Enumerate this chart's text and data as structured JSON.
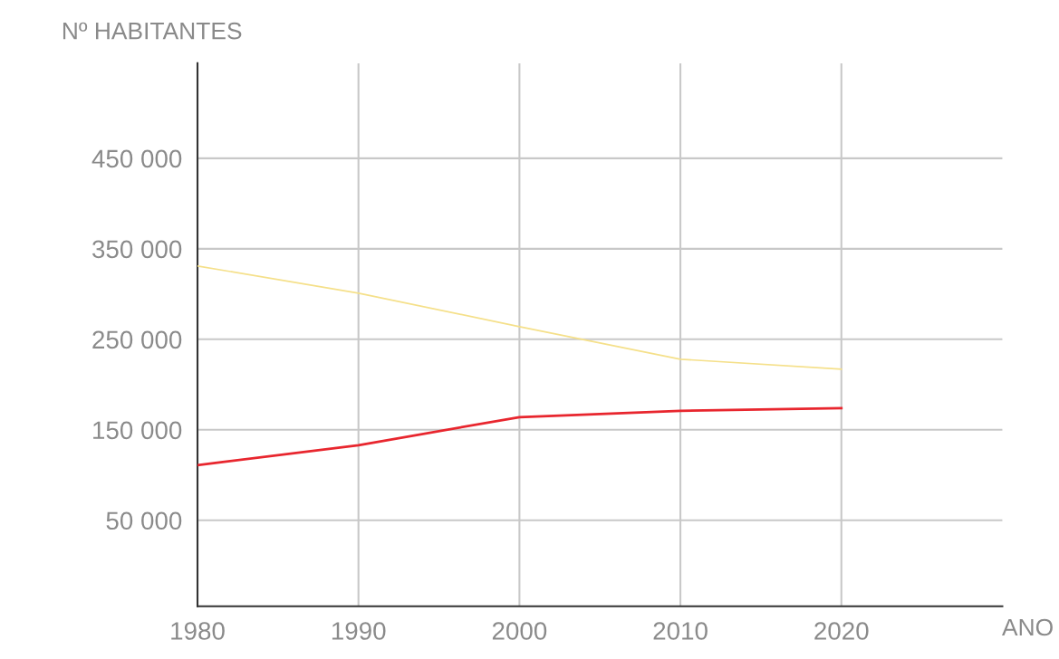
{
  "chart_data": {
    "type": "line",
    "ylabel": "Nº HABITANTES",
    "xlabel": "ANO",
    "x": [
      1980,
      1990,
      2000,
      2010,
      2020
    ],
    "series": [
      {
        "color": "#f5e08a",
        "values": [
          331000,
          301000,
          264000,
          228000,
          217000
        ]
      },
      {
        "color": "#e8262e",
        "values": [
          111000,
          133000,
          164000,
          171000,
          174000
        ]
      }
    ],
    "xlim": [
      1980,
      2030
    ],
    "xticks": [
      1980,
      1990,
      2000,
      2010,
      2020
    ],
    "ylim": [
      -45000,
      555000
    ],
    "yticks": [
      {
        "value": 50000,
        "label": "50 000"
      },
      {
        "value": 150000,
        "label": "150 000"
      },
      {
        "value": 250000,
        "label": "250 000"
      },
      {
        "value": 350000,
        "label": "350 000"
      },
      {
        "value": 450000,
        "label": "450 000"
      }
    ],
    "grid": true,
    "legend": false,
    "marker": "none",
    "line_style": "solid"
  }
}
